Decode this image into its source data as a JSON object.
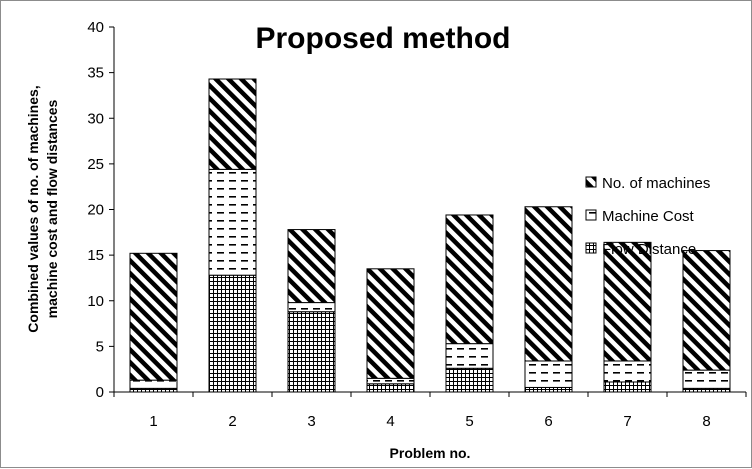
{
  "chart_data": {
    "type": "bar",
    "stacked": true,
    "title": "Proposed method",
    "xlabel": "Problem no.",
    "ylabel_lines": [
      "Combined values of no. of machines,",
      "machine cost and flow distances"
    ],
    "ylim": [
      0,
      40
    ],
    "y_ticks": [
      0,
      5,
      10,
      15,
      20,
      25,
      30,
      35,
      40
    ],
    "grid": false,
    "legend_position": "right",
    "categories": [
      "1",
      "2",
      "3",
      "4",
      "5",
      "6",
      "7",
      "8"
    ],
    "series": [
      {
        "name": "Flow Distance",
        "pattern": "grid",
        "values": [
          0.4,
          12.8,
          8.8,
          0.9,
          2.6,
          0.5,
          1.1,
          0.4
        ]
      },
      {
        "name": "Machine Cost",
        "pattern": "dash",
        "values": [
          0.9,
          11.6,
          1.0,
          0.6,
          2.7,
          2.9,
          2.3,
          2.0
        ]
      },
      {
        "name": "No. of machines",
        "pattern": "diagonal",
        "values": [
          13.9,
          9.9,
          8.0,
          12.0,
          14.1,
          16.9,
          13.0,
          13.1
        ]
      }
    ],
    "legend_order": [
      2,
      1,
      0
    ]
  }
}
